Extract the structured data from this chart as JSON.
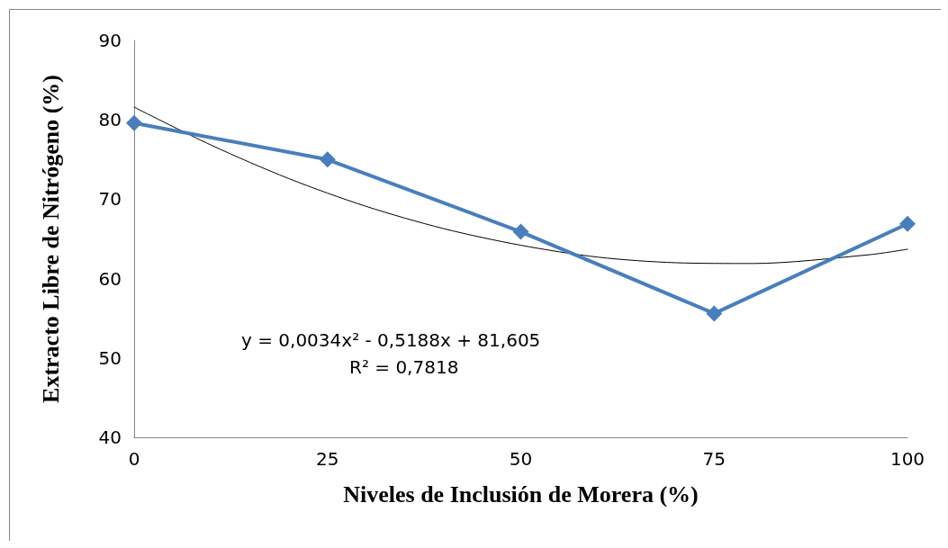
{
  "chart_data": {
    "type": "line",
    "xlabel": "Niveles de Inclusión de Morera (%)",
    "ylabel": "Extracto Libre de Nitrógeno (%)",
    "xlim": [
      0,
      100
    ],
    "xticks": [
      0,
      25,
      50,
      75,
      100
    ],
    "ylim": [
      40,
      90
    ],
    "yticks": [
      40,
      50,
      60,
      70,
      80,
      90
    ],
    "grid": false,
    "marker": "diamond",
    "line_style": "solid",
    "annotations": [
      "y = 0,0034x² - 0,5188x + 81,605",
      "R² = 0,7818"
    ],
    "series": [
      {
        "color": "#4a7ebb",
        "x": [
          0,
          25,
          50,
          75,
          100
        ],
        "values": [
          79.6,
          75.0,
          65.9,
          55.6,
          66.9
        ]
      },
      {
        "type": "line",
        "color": "#000000",
        "marker": "none",
        "x": [
          0,
          10,
          20,
          30,
          40,
          50,
          60,
          70,
          80,
          95,
          100
        ],
        "values": [
          81.6,
          76.8,
          72.6,
          69.1,
          66.3,
          64.2,
          62.7,
          62.0,
          61.9,
          63.0,
          63.7
        ]
      }
    ]
  }
}
